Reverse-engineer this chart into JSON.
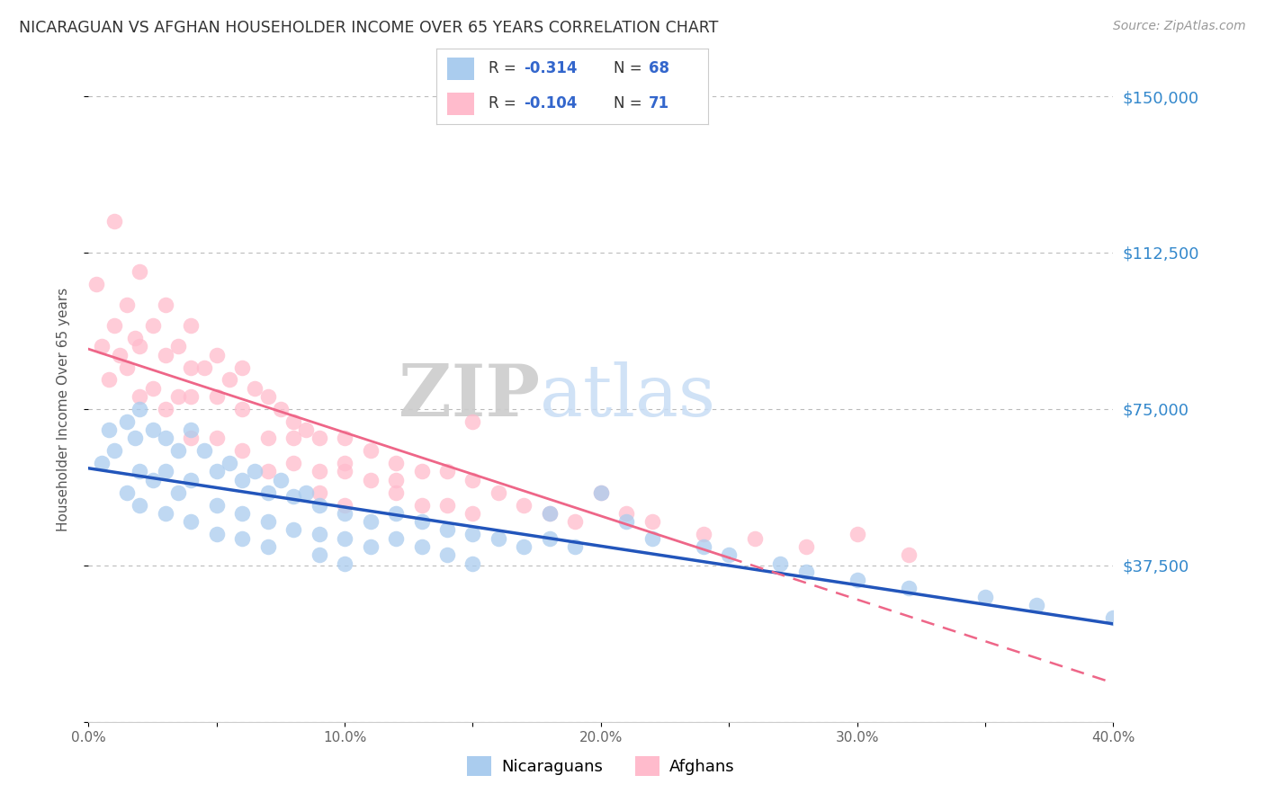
{
  "title": "NICARAGUAN VS AFGHAN HOUSEHOLDER INCOME OVER 65 YEARS CORRELATION CHART",
  "source": "Source: ZipAtlas.com",
  "ylabel": "Householder Income Over 65 years",
  "xlim": [
    0.0,
    0.4
  ],
  "ylim": [
    0,
    150000
  ],
  "yticks": [
    0,
    37500,
    75000,
    112500,
    150000
  ],
  "ytick_labels": [
    "",
    "$37,500",
    "$75,000",
    "$112,500",
    "$150,000"
  ],
  "xtick_labels": [
    "0.0%",
    "",
    "10.0%",
    "",
    "20.0%",
    "",
    "30.0%",
    "",
    "40.0%"
  ],
  "xticks": [
    0.0,
    0.05,
    0.1,
    0.15,
    0.2,
    0.25,
    0.3,
    0.35,
    0.4
  ],
  "background_color": "#ffffff",
  "grid_color": "#bbbbbb",
  "nicaraguan_color": "#aaccee",
  "afghan_color": "#ffbbcc",
  "nicaraguan_line_color": "#2255bb",
  "afghan_line_color": "#ee6688",
  "legend_text_color": "#3366cc",
  "ytick_color": "#3388cc",
  "nic_n": 68,
  "afg_n": 71,
  "nic_r": "-0.314",
  "afg_r": "-0.104"
}
